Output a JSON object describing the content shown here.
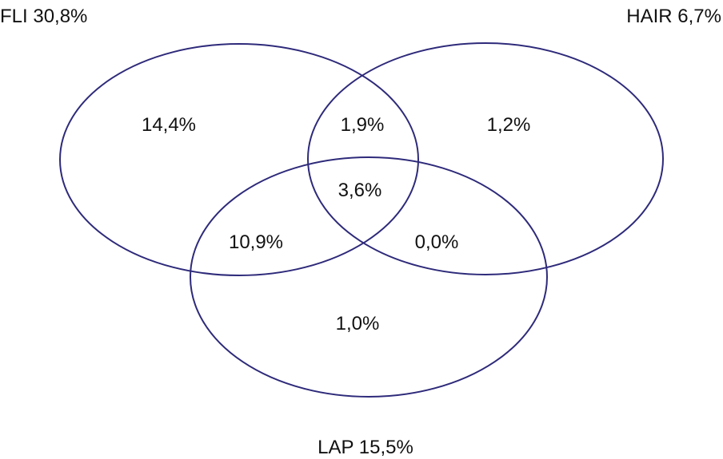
{
  "stroke_color": "#2e2a7a",
  "text_color": "#111111",
  "sets": {
    "fli": {
      "label": "FLI 30,8%"
    },
    "hair": {
      "label": "HAIR 6,7%"
    },
    "lap": {
      "label": "LAP 15,5%"
    }
  },
  "regions": {
    "fli_only": "14,4%",
    "fli_hair": "1,9%",
    "hair_only": "1,2%",
    "all_three": "3,6%",
    "fli_lap": "10,9%",
    "hair_lap": "0,0%",
    "lap_only": "1,0%"
  }
}
